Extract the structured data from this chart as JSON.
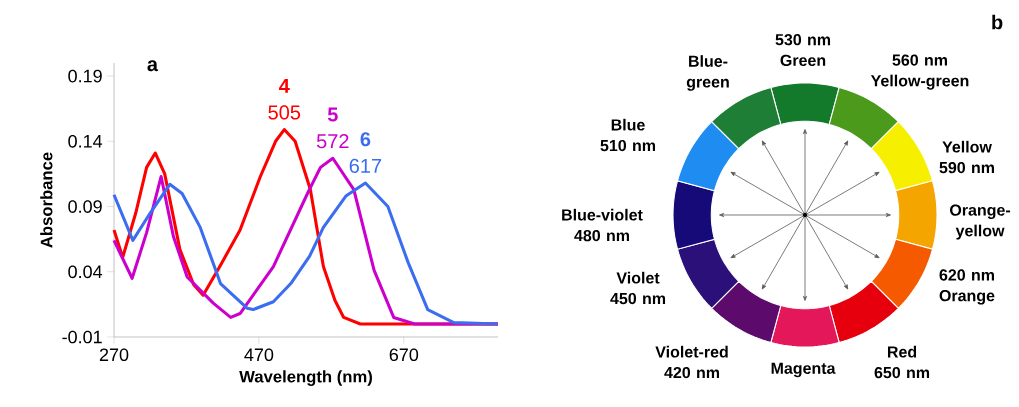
{
  "chart_data": [
    {
      "type": "line",
      "title": "a",
      "xlabel": "Wavelength (nm)",
      "ylabel": "Absorbance",
      "xlim": [
        270,
        800
      ],
      "ylim": [
        -0.01,
        0.2
      ],
      "xticks": [
        270,
        470,
        670
      ],
      "yticks": [
        -0.01,
        0.04,
        0.09,
        0.14,
        0.19
      ],
      "series": [
        {
          "name": "4",
          "color": "#ff0000",
          "x": [
            270,
            282,
            300,
            315,
            327,
            340,
            361,
            380,
            393,
            417,
            444,
            472,
            493,
            505,
            520,
            541,
            559,
            575,
            587,
            610,
            650,
            700,
            750,
            800
          ],
          "values": [
            0.072,
            0.051,
            0.085,
            0.12,
            0.131,
            0.115,
            0.057,
            0.03,
            0.022,
            0.045,
            0.072,
            0.113,
            0.14,
            0.149,
            0.14,
            0.103,
            0.044,
            0.018,
            0.005,
            0.0,
            0.0,
            0.0,
            0.0,
            0.0
          ]
        },
        {
          "name": "5",
          "color": "#cc00cc",
          "x": [
            270,
            295,
            315,
            335,
            352,
            371,
            407,
            431,
            444,
            490,
            537,
            555,
            572,
            601,
            629,
            656,
            685,
            800
          ],
          "values": [
            0.064,
            0.035,
            0.07,
            0.113,
            0.067,
            0.036,
            0.016,
            0.005,
            0.008,
            0.044,
            0.1,
            0.12,
            0.127,
            0.103,
            0.041,
            0.005,
            0.0,
            0.0
          ]
        },
        {
          "name": "6",
          "color": "#3a6df0",
          "x": [
            270,
            296,
            320,
            347,
            364,
            389,
            417,
            454,
            462,
            490,
            514,
            540,
            559,
            590,
            617,
            648,
            676,
            703,
            739,
            800
          ],
          "values": [
            0.099,
            0.064,
            0.085,
            0.107,
            0.1,
            0.074,
            0.031,
            0.012,
            0.011,
            0.017,
            0.031,
            0.052,
            0.074,
            0.098,
            0.108,
            0.09,
            0.047,
            0.011,
            0.001,
            0.0
          ]
        }
      ],
      "annotations": [
        {
          "text": "505",
          "x": 505,
          "y": 0.149
        },
        {
          "text": "572",
          "x": 572,
          "y": 0.127
        },
        {
          "text": "617",
          "x": 617,
          "y": 0.108
        }
      ]
    },
    {
      "type": "donut",
      "title": "b",
      "categories": [
        "530 nm Green",
        "560 nm Yellow-green",
        "Yellow 590 nm",
        "Orange-yellow",
        "620 nm Orange",
        "Red 650 nm",
        "Magenta",
        "Violet-red 420 nm",
        "Violet 450 nm",
        "Blue-violet 480 nm",
        "Blue 510 nm",
        "Blue-green"
      ],
      "values": [
        8.33,
        8.33,
        8.33,
        8.33,
        8.33,
        8.33,
        8.33,
        8.33,
        8.33,
        8.33,
        8.33,
        8.33
      ],
      "colors": [
        "#137a2c",
        "#4c9a1c",
        "#f6f000",
        "#f5a500",
        "#f65a00",
        "#e6000e",
        "#e3175a",
        "#5c0a6b",
        "#2b107a",
        "#160a78",
        "#1e8cf0",
        "#1f7e35"
      ]
    }
  ]
}
